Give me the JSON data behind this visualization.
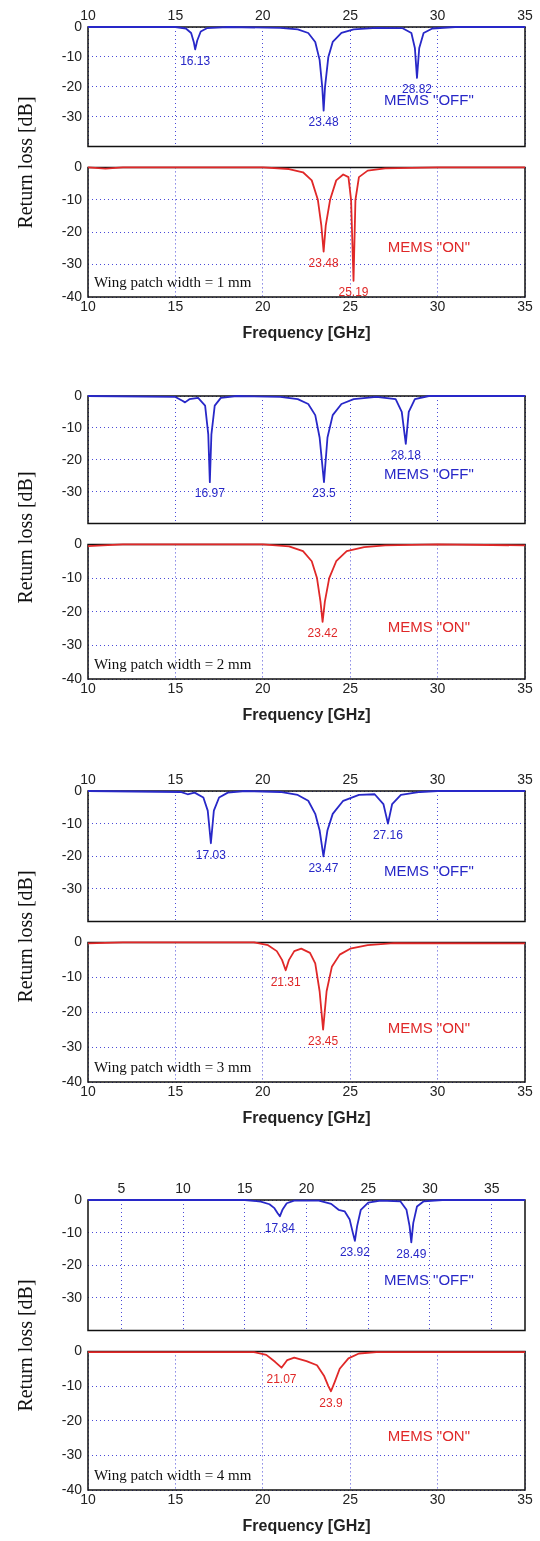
{
  "chart_data": [
    {
      "type": "line",
      "xlim": [
        10,
        35
      ],
      "xticks": [
        10,
        15,
        20,
        25,
        30,
        35
      ],
      "ylim": [
        -40,
        0
      ],
      "yticks": [
        0,
        -10,
        -20,
        -30
      ],
      "grid": true,
      "x": [
        10,
        15,
        15.6,
        15.9,
        16.05,
        16.13,
        16.25,
        16.45,
        16.8,
        18,
        21,
        22,
        22.6,
        23,
        23.25,
        23.4,
        23.48,
        23.56,
        23.75,
        24,
        24.5,
        25.2,
        26.5,
        28,
        28.5,
        28.7,
        28.82,
        28.95,
        29.2,
        29.7,
        31,
        35
      ],
      "series": [
        {
          "name": "MEMS \"OFF\"",
          "color": "#2828c8",
          "values": [
            0,
            0,
            -0.5,
            -2,
            -5,
            -7.5,
            -4.5,
            -1.5,
            -0.4,
            0,
            -0.3,
            -0.8,
            -2,
            -5,
            -11,
            -20,
            -28,
            -20,
            -10,
            -5,
            -2,
            -0.8,
            -0.3,
            -0.4,
            -2,
            -7,
            -17,
            -7,
            -2,
            -0.5,
            0,
            0
          ]
        }
      ],
      "annotations": [
        {
          "text": "16.13",
          "x": 16.13,
          "y": -7.5
        },
        {
          "text": "23.48",
          "x": 23.48,
          "y": -28
        },
        {
          "text": "28.82",
          "x": 28.82,
          "y": -17
        }
      ]
    },
    {
      "type": "line",
      "xlim": [
        10,
        35
      ],
      "xticks": [
        10,
        15,
        20,
        25,
        30,
        35
      ],
      "ylim": [
        -40,
        0
      ],
      "yticks": [
        0,
        -10,
        -20,
        -30,
        -40
      ],
      "grid": true,
      "xlabel": "Frequency [GHz]",
      "ylabel": "Return loss [dB]",
      "x": [
        10,
        11,
        12,
        20,
        21.5,
        22.3,
        22.8,
        23.15,
        23.35,
        23.48,
        23.6,
        23.85,
        24.2,
        24.6,
        24.9,
        25.05,
        25.19,
        25.3,
        25.5,
        26,
        27,
        30,
        35
      ],
      "series": [
        {
          "name": "MEMS \"ON\"",
          "color": "#e02828",
          "values": [
            0,
            -0.4,
            0,
            0,
            -0.5,
            -1.5,
            -4,
            -10,
            -18,
            -26,
            -18,
            -10,
            -4,
            -2.2,
            -3,
            -10,
            -35,
            -10,
            -3,
            -1,
            -0.3,
            0,
            0
          ]
        }
      ],
      "annotations": [
        {
          "text": "23.48",
          "x": 23.48,
          "y": -26
        },
        {
          "text": "25.19",
          "x": 25.19,
          "y": -35
        },
        "Wing patch width = 1 mm"
      ]
    },
    {
      "type": "line",
      "xlim": [
        10,
        35
      ],
      "xticks": [
        10,
        15,
        20,
        25,
        30,
        35
      ],
      "ylim": [
        -40,
        0
      ],
      "yticks": [
        0,
        -10,
        -20,
        -30
      ],
      "grid": true,
      "tick_labels": "y",
      "x": [
        10,
        15,
        15.4,
        15.55,
        15.8,
        16.3,
        16.7,
        16.88,
        16.97,
        17.06,
        17.25,
        17.6,
        18.5,
        21,
        22,
        22.6,
        23,
        23.25,
        23.5,
        23.7,
        24,
        24.5,
        25.2,
        26.5,
        27.6,
        27.95,
        28.18,
        28.35,
        28.7,
        29.5,
        35
      ],
      "series": [
        {
          "name": "MEMS \"OFF\"",
          "color": "#2828c8",
          "values": [
            0,
            -0.3,
            -1.5,
            -2,
            -1,
            -0.6,
            -3,
            -12,
            -27,
            -12,
            -3,
            -0.6,
            0,
            -0.3,
            -1,
            -2.5,
            -6,
            -13,
            -27,
            -13,
            -6,
            -2.5,
            -1,
            -0.3,
            -1,
            -5,
            -15,
            -5,
            -1,
            0,
            0
          ]
        }
      ],
      "annotations": [
        {
          "text": "16.97",
          "x": 16.97,
          "y": -27
        },
        {
          "text": "23.5",
          "x": 23.5,
          "y": -27
        },
        {
          "text": "28.18",
          "x": 28.18,
          "y": -15
        }
      ]
    },
    {
      "type": "line",
      "xlim": [
        10,
        35
      ],
      "xticks": [
        10,
        15,
        20,
        25,
        30,
        35
      ],
      "ylim": [
        -40,
        0
      ],
      "yticks": [
        0,
        -10,
        -20,
        -30,
        -40
      ],
      "grid": true,
      "xlabel": "Frequency [GHz]",
      "ylabel": "Return loss [dB]",
      "x": [
        10,
        12,
        20,
        21.5,
        22.3,
        22.8,
        23.1,
        23.3,
        23.42,
        23.55,
        23.8,
        24.2,
        24.8,
        25.8,
        27,
        30,
        35
      ],
      "series": [
        {
          "name": "MEMS \"ON\"",
          "color": "#e02828",
          "values": [
            -0.5,
            0,
            0,
            -0.6,
            -2,
            -5,
            -10,
            -17,
            -23,
            -17,
            -10,
            -5,
            -2,
            -0.8,
            -0.3,
            0,
            -0.3
          ]
        }
      ],
      "annotations": [
        {
          "text": "23.42",
          "x": 23.42,
          "y": -23
        },
        "Wing patch width = 2 mm"
      ]
    },
    {
      "type": "line",
      "xlim": [
        10,
        35
      ],
      "xticks": [
        10,
        15,
        20,
        25,
        30,
        35
      ],
      "ylim": [
        -40,
        0
      ],
      "yticks": [
        0,
        -10,
        -20,
        -30
      ],
      "grid": true,
      "x": [
        10,
        15.3,
        15.7,
        16.1,
        16.6,
        16.85,
        17.03,
        17.2,
        17.5,
        18,
        19,
        21,
        22,
        22.6,
        23,
        23.25,
        23.47,
        23.7,
        24,
        24.6,
        25.5,
        26.4,
        26.9,
        27.16,
        27.4,
        27.9,
        29,
        30,
        35
      ],
      "series": [
        {
          "name": "MEMS \"OFF\"",
          "color": "#2828c8",
          "values": [
            0,
            -0.3,
            -1,
            -0.5,
            -2,
            -6,
            -16,
            -6,
            -2,
            -0.5,
            0,
            -0.3,
            -1.2,
            -3,
            -7,
            -12,
            -20,
            -12,
            -7,
            -3,
            -1.2,
            -1,
            -4,
            -10,
            -4,
            -1.2,
            -0.3,
            0,
            0
          ]
        }
      ],
      "annotations": [
        {
          "text": "17.03",
          "x": 17.03,
          "y": -16
        },
        {
          "text": "23.47",
          "x": 23.47,
          "y": -20
        },
        {
          "text": "27.16",
          "x": 27.16,
          "y": -10
        }
      ]
    },
    {
      "type": "line",
      "xlim": [
        10,
        35
      ],
      "xticks": [
        10,
        15,
        20,
        25,
        30,
        35
      ],
      "ylim": [
        -40,
        0
      ],
      "yticks": [
        0,
        -10,
        -20,
        -30,
        -40
      ],
      "grid": true,
      "xlabel": "Frequency [GHz]",
      "ylabel": "Return loss [dB]",
      "x": [
        10,
        12,
        19.5,
        20.3,
        20.8,
        21.1,
        21.31,
        21.5,
        21.8,
        22.2,
        22.7,
        23,
        23.25,
        23.45,
        23.65,
        23.95,
        24.4,
        25,
        26,
        27.5,
        35
      ],
      "series": [
        {
          "name": "MEMS \"ON\"",
          "color": "#e02828",
          "values": [
            -0.3,
            0,
            0,
            -0.8,
            -2.5,
            -5,
            -8,
            -5,
            -2.5,
            -1.8,
            -3,
            -6,
            -14,
            -25,
            -14,
            -7,
            -3.5,
            -1.8,
            -0.8,
            -0.2,
            -0.3
          ]
        }
      ],
      "annotations": [
        {
          "text": "21.31",
          "x": 21.31,
          "y": -8
        },
        {
          "text": "23.45",
          "x": 23.45,
          "y": -25
        },
        "Wing patch width = 3 mm"
      ]
    },
    {
      "type": "line",
      "xlim": [
        2.3,
        37.7
      ],
      "xticks": [
        5,
        10,
        15,
        20,
        25,
        30,
        35
      ],
      "ylim": [
        -40,
        0
      ],
      "yticks": [
        0,
        -10,
        -20,
        -30
      ],
      "grid": true,
      "x": [
        2.3,
        15,
        16.3,
        17,
        17.4,
        17.65,
        17.84,
        18.05,
        18.4,
        19,
        21,
        22,
        22.6,
        23.1,
        23.5,
        23.75,
        23.92,
        24.1,
        24.4,
        25,
        26,
        27.6,
        28.1,
        28.35,
        28.49,
        28.65,
        28.95,
        29.5,
        31,
        37.7
      ],
      "series": [
        {
          "name": "MEMS \"OFF\"",
          "color": "#2828c8",
          "values": [
            0,
            0,
            -0.5,
            -1.3,
            -2.5,
            -4,
            -5,
            -3,
            -1,
            -0.2,
            -0.2,
            -1.2,
            -3,
            -3.5,
            -6,
            -10,
            -12.5,
            -8,
            -3,
            -0.8,
            -0.2,
            -0.4,
            -3,
            -8,
            -13,
            -7,
            -2,
            -0.4,
            0,
            0
          ]
        }
      ],
      "annotations": [
        {
          "text": "17.84",
          "x": 17.84,
          "y": -5
        },
        {
          "text": "23.92",
          "x": 23.92,
          "y": -12.5
        },
        {
          "text": "28.49",
          "x": 28.49,
          "y": -13
        }
      ]
    },
    {
      "type": "line",
      "xlim": [
        10,
        35
      ],
      "xticks": [
        10,
        15,
        20,
        25,
        30,
        35
      ],
      "ylim": [
        -40,
        0
      ],
      "yticks": [
        0,
        -10,
        -20,
        -30,
        -40
      ],
      "grid": true,
      "xlabel": "Frequency [GHz]",
      "ylabel": "Return loss [dB]",
      "x": [
        10,
        19.5,
        20.2,
        20.7,
        21.07,
        21.4,
        21.8,
        22.5,
        23.1,
        23.5,
        23.75,
        23.9,
        24.1,
        24.4,
        24.9,
        25.5,
        26.5,
        35
      ],
      "series": [
        {
          "name": "MEMS \"ON\"",
          "color": "#e02828",
          "values": [
            -0.2,
            -0.2,
            -1,
            -3,
            -4.7,
            -2.5,
            -1.8,
            -2.8,
            -4,
            -7,
            -10,
            -11.5,
            -9,
            -5,
            -2,
            -0.6,
            -0.2,
            -0.2
          ]
        }
      ],
      "annotations": [
        {
          "text": "21.07",
          "x": 21.07,
          "y": -4.7
        },
        {
          "text": "23.9",
          "x": 23.9,
          "y": -11.5
        },
        "Wing patch width = 4 mm"
      ]
    }
  ]
}
